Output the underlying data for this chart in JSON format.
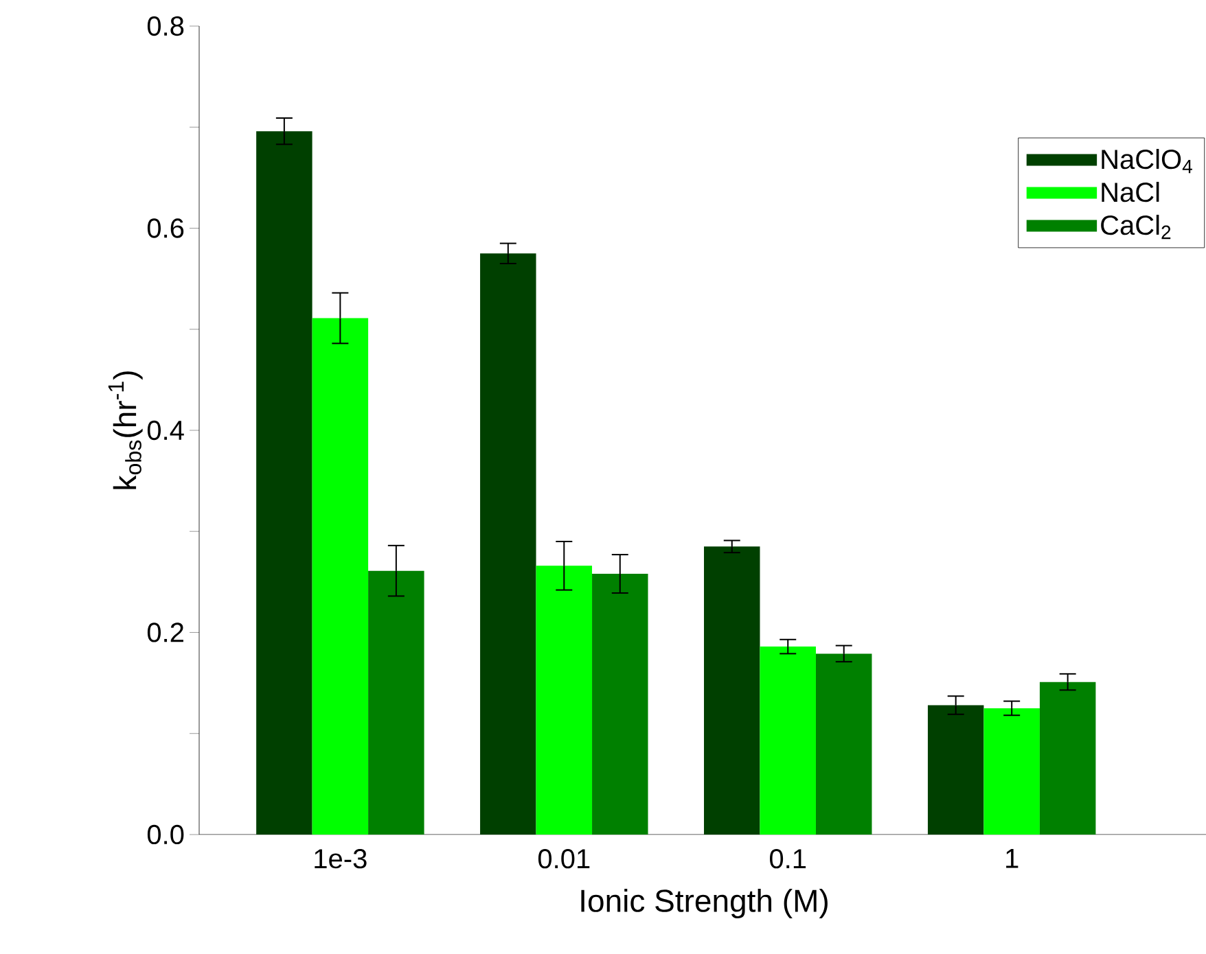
{
  "chart_data": {
    "type": "bar",
    "xlabel": "Ionic Strength (M)",
    "ylabel": "k$_{obs}$(hr$^{-1}$)",
    "categories": [
      "1e-3",
      "0.01",
      "0.1",
      "1"
    ],
    "series": [
      {
        "name": "NaClO$_{4}$",
        "color": "#004000",
        "values": [
          0.696,
          0.575,
          0.285,
          0.128
        ],
        "errors": [
          0.013,
          0.01,
          0.006,
          0.009
        ]
      },
      {
        "name": "NaCl",
        "color": "#00ff00",
        "values": [
          0.511,
          0.266,
          0.186,
          0.125
        ],
        "errors": [
          0.025,
          0.024,
          0.007,
          0.007
        ]
      },
      {
        "name": "CaCl$_{2}$",
        "color": "#008000",
        "values": [
          0.261,
          0.258,
          0.179,
          0.151
        ],
        "errors": [
          0.025,
          0.019,
          0.008,
          0.008
        ]
      }
    ],
    "ylim": [
      0,
      0.8
    ],
    "yticks": [
      {
        "value": 0,
        "label": "0.0"
      },
      {
        "value": 0.1,
        "label": null
      },
      {
        "value": 0.2,
        "label": "0.2"
      },
      {
        "value": 0.3,
        "label": null
      },
      {
        "value": 0.4,
        "label": "0.4"
      },
      {
        "value": 0.5,
        "label": null
      },
      {
        "value": 0.6,
        "label": "0.6"
      },
      {
        "value": 0.7,
        "label": null
      },
      {
        "value": 0.8,
        "label": "0.8"
      }
    ],
    "legend": "top right",
    "grid": false
  }
}
